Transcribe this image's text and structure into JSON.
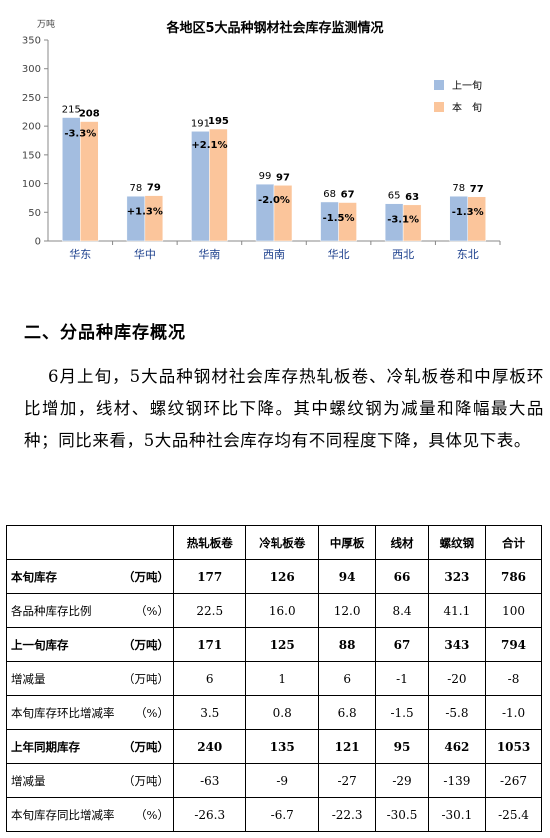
{
  "chart_data": {
    "type": "bar",
    "title": "各地区5大品种钢材社会库存监测情况",
    "ylabel": "万吨",
    "ylim": [
      0,
      350
    ],
    "yticks": [
      0,
      50,
      100,
      150,
      200,
      250,
      300,
      350
    ],
    "categories": [
      "华东",
      "华中",
      "华南",
      "西南",
      "华北",
      "西北",
      "东北"
    ],
    "series": [
      {
        "name": "上一旬",
        "values": [
          215,
          78,
          191,
          99,
          68,
          65,
          78
        ],
        "color": "#a3bde0"
      },
      {
        "name": "本　旬",
        "values": [
          208,
          79,
          195,
          97,
          67,
          63,
          77
        ],
        "color": "#fbc59b"
      }
    ],
    "change_labels": [
      "-3.3%",
      "+1.3%",
      "+2.1%",
      "-2.0%",
      "-1.5%",
      "-3.1%",
      "-1.3%"
    ],
    "legend_position": "right",
    "grid": false
  },
  "section": {
    "title": "二、分品种库存概况"
  },
  "paragraph": "6月上旬，5大品种钢材社会库存热轧板卷、冷轧板卷和中厚板环比增加，线材、螺纹钢环比下降。其中螺纹钢为减量和降幅最大品种；同比来看，5大品种社会库存均有不同程度下降，具体见下表。",
  "table": {
    "headers": [
      "热轧板卷",
      "冷轧板卷",
      "中厚板",
      "线材",
      "螺纹钢",
      "合计"
    ],
    "rows": [
      {
        "label": "本旬库存",
        "unit": "（万吨）",
        "bold": true,
        "values": [
          "177",
          "126",
          "94",
          "66",
          "323",
          "786"
        ]
      },
      {
        "label": "各品种库存比例",
        "unit": "（%）",
        "bold": false,
        "values": [
          "22.5",
          "16.0",
          "12.0",
          "8.4",
          "41.1",
          "100"
        ]
      },
      {
        "label": "上一旬库存",
        "unit": "（万吨）",
        "bold": true,
        "values": [
          "171",
          "125",
          "88",
          "67",
          "343",
          "794"
        ]
      },
      {
        "label": "增减量",
        "unit": "（万吨）",
        "bold": false,
        "values": [
          "6",
          "1",
          "6",
          "-1",
          "-20",
          "-8"
        ]
      },
      {
        "label": "本旬库存环比增减率",
        "unit": "（%）",
        "bold": false,
        "values": [
          "3.5",
          "0.8",
          "6.8",
          "-1.5",
          "-5.8",
          "-1.0"
        ]
      },
      {
        "label": "上年同期库存",
        "unit": "（万吨）",
        "bold": true,
        "values": [
          "240",
          "135",
          "121",
          "95",
          "462",
          "1053"
        ]
      },
      {
        "label": "增减量",
        "unit": "（万吨）",
        "bold": false,
        "values": [
          "-63",
          "-9",
          "-27",
          "-29",
          "-139",
          "-267"
        ]
      },
      {
        "label": "本旬库存同比增减率",
        "unit": "（%）",
        "bold": false,
        "values": [
          "-26.3",
          "-6.7",
          "-22.3",
          "-30.5",
          "-30.1",
          "-25.4"
        ]
      }
    ]
  }
}
